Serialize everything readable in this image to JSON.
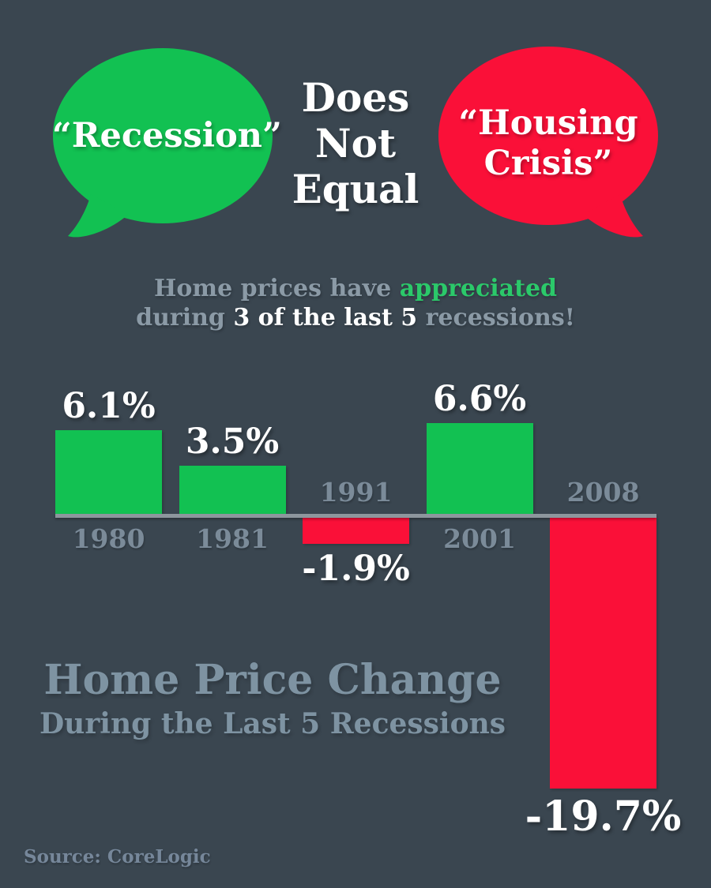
{
  "colors": {
    "background": "#3a4650",
    "green": "#12c152",
    "red": "#fa1038",
    "white": "#ffffff",
    "text_green": "#2bc96a",
    "gray_subtitle": "#8b9aa6",
    "gray_title": "#7e93a2",
    "gray_year": "#7b8b99",
    "axis": "#8d969d",
    "source": "#76879a"
  },
  "bubbles": {
    "left": {
      "label": "“Recession”"
    },
    "middle": {
      "line1": "Does",
      "line2": "Not",
      "line3": "Equal"
    },
    "right": {
      "line1": "“Housing",
      "line2": "Crisis”"
    }
  },
  "subtitle": {
    "seg1": "Home prices have ",
    "seg2": "appreciated",
    "seg3": "during ",
    "seg4": "3 of the last 5",
    "seg5": " recessions!"
  },
  "chart_data": {
    "type": "bar",
    "title": "Home Price Change",
    "subtitle": "During the Last 5 Recessions",
    "categories": [
      "1980",
      "1981",
      "1991",
      "2001",
      "2008"
    ],
    "values": [
      6.1,
      3.5,
      -1.9,
      6.6,
      -19.7
    ],
    "value_labels": [
      "6.1%",
      "3.5%",
      "-1.9%",
      "6.6%",
      "-19.7%"
    ],
    "xlabel": "",
    "ylabel": "",
    "ylim": [
      -20,
      7
    ],
    "grid": false,
    "legend": false,
    "bar_colors": {
      "positive": "#12c152",
      "negative": "#fa1038"
    },
    "axis_color": "#8d969d",
    "year_label_color": "#7b8b99"
  },
  "source": {
    "label": "Source: CoreLogic"
  }
}
